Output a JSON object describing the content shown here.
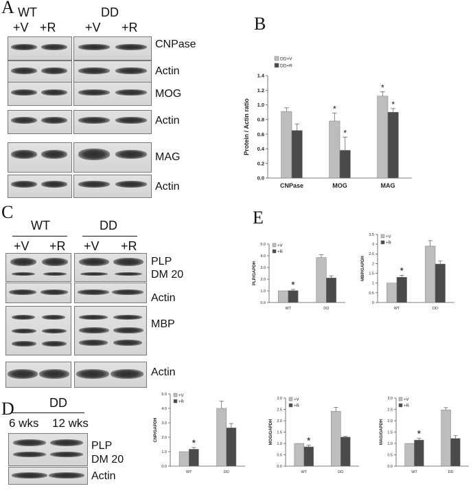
{
  "panel_letters": {
    "a": "A",
    "b": "B",
    "c": "C",
    "d": "D",
    "e": "E"
  },
  "panel_a": {
    "group_wt": "WT",
    "group_dd": "DD",
    "lanes": [
      "+V",
      "+R",
      "+V",
      "+R"
    ],
    "rows": [
      "CNPase",
      "Actin",
      "MOG",
      "Actin",
      "MAG",
      "Actin"
    ]
  },
  "panel_c": {
    "group_wt": "WT",
    "group_dd": "DD",
    "lanes": [
      "+V",
      "+R",
      "+V",
      "+R"
    ],
    "rows": {
      "plp": "PLP",
      "dm20": "DM 20",
      "actin1": "Actin",
      "mbp": "MBP",
      "actin2": "Actin"
    }
  },
  "panel_d": {
    "group": "DD",
    "lanes": [
      "6 wks",
      "12 wks"
    ],
    "rows": {
      "plp": "PLP",
      "dm20": "DM 20",
      "actin": "Actin"
    }
  },
  "chart_data": [
    {
      "id": "B",
      "type": "bar",
      "categories": [
        "CNPase",
        "MOG",
        "MAG"
      ],
      "series": [
        {
          "name": "DD+V",
          "values": [
            0.91,
            0.78,
            1.12
          ],
          "errors": [
            0.05,
            0.11,
            0.06
          ],
          "color": "#bdbdbd"
        },
        {
          "name": "DD+R",
          "values": [
            0.65,
            0.38,
            0.9
          ],
          "errors": [
            0.09,
            0.18,
            0.05
          ],
          "color": "#4a4a4a"
        }
      ],
      "significant": [
        "",
        "",
        "*",
        "*",
        "*",
        "*"
      ],
      "ylabel": "Protein / Actin ratio",
      "ylim": [
        0,
        1.4
      ],
      "yticks": [
        "0.0",
        "0.2",
        "0.4",
        "0.6",
        "0.8",
        "1.0",
        "1.2",
        "1.4"
      ],
      "legend": "top-left"
    },
    {
      "id": "E-PLP",
      "type": "bar",
      "categories": [
        "WT",
        "DD"
      ],
      "series": [
        {
          "name": "+V",
          "values": [
            1.0,
            3.85
          ],
          "errors": [
            0.0,
            0.25
          ],
          "color": "#bdbdbd"
        },
        {
          "name": "+R",
          "values": [
            1.02,
            2.1
          ],
          "errors": [
            0.1,
            0.18
          ],
          "color": "#4a4a4a"
        }
      ],
      "significant": [
        "",
        "*"
      ],
      "ylabel": "PLP/GAPDH",
      "ylim": [
        0,
        5
      ],
      "yticks": [
        "0.0",
        "1.0",
        "2.0",
        "3.0",
        "4.0",
        "5.0"
      ],
      "legend": "top-left"
    },
    {
      "id": "E-MBP",
      "type": "bar",
      "categories": [
        "WT",
        "DD"
      ],
      "series": [
        {
          "name": "+V",
          "values": [
            1.0,
            2.9
          ],
          "errors": [
            0.0,
            0.28
          ],
          "color": "#bdbdbd"
        },
        {
          "name": "+R",
          "values": [
            1.3,
            1.98
          ],
          "errors": [
            0.1,
            0.15
          ],
          "color": "#4a4a4a"
        }
      ],
      "significant": [
        "",
        "*"
      ],
      "ylabel": "MBP/GAPDH",
      "ylim": [
        0,
        3.5
      ],
      "yticks": [
        "0",
        "0.5",
        "1",
        "1.5",
        "2",
        "2.5",
        "3",
        "3.5"
      ],
      "legend": "top-left"
    },
    {
      "id": "E-CNP",
      "type": "bar",
      "categories": [
        "WT",
        "DD"
      ],
      "series": [
        {
          "name": "+V",
          "values": [
            1.0,
            4.0
          ],
          "errors": [
            0.0,
            0.5
          ],
          "color": "#bdbdbd"
        },
        {
          "name": "+R",
          "values": [
            1.17,
            2.65
          ],
          "errors": [
            0.12,
            0.3
          ],
          "color": "#4a4a4a"
        }
      ],
      "significant": [
        "",
        "*"
      ],
      "ylabel": "CNP/GAPDH",
      "ylim": [
        0,
        5
      ],
      "yticks": [
        "0.0",
        "1.0",
        "2.0",
        "3.0",
        "4.0",
        "5.0"
      ],
      "legend": "top-left"
    },
    {
      "id": "E-MOG",
      "type": "bar",
      "categories": [
        "WT",
        "DD"
      ],
      "series": [
        {
          "name": "+V",
          "values": [
            1.0,
            2.42
          ],
          "errors": [
            0.0,
            0.17
          ],
          "color": "#bdbdbd"
        },
        {
          "name": "+R",
          "values": [
            0.85,
            1.28
          ],
          "errors": [
            0.07,
            0.03
          ],
          "color": "#4a4a4a"
        }
      ],
      "significant": [
        "",
        "*"
      ],
      "ylabel": "MOG/GAPDH",
      "ylim": [
        0,
        3
      ],
      "yticks": [
        "0.0",
        "0.5",
        "1.0",
        "1.5",
        "2.0",
        "2.5",
        "3.0"
      ],
      "legend": "top-left"
    },
    {
      "id": "E-MAG",
      "type": "bar",
      "categories": [
        "WT",
        "DD"
      ],
      "series": [
        {
          "name": "+V",
          "values": [
            1.0,
            2.48
          ],
          "errors": [
            0.0,
            0.1
          ],
          "color": "#bdbdbd"
        },
        {
          "name": "+R",
          "values": [
            1.15,
            1.22
          ],
          "errors": [
            0.07,
            0.12
          ],
          "color": "#4a4a4a"
        }
      ],
      "significant": [
        "",
        "*"
      ],
      "ylabel": "MAG/GAPDH",
      "ylim": [
        0,
        3
      ],
      "yticks": [
        "0.0",
        "0.5",
        "1.0",
        "1.5",
        "2.0",
        "2.5",
        "3.0"
      ],
      "legend": "top-left"
    }
  ]
}
